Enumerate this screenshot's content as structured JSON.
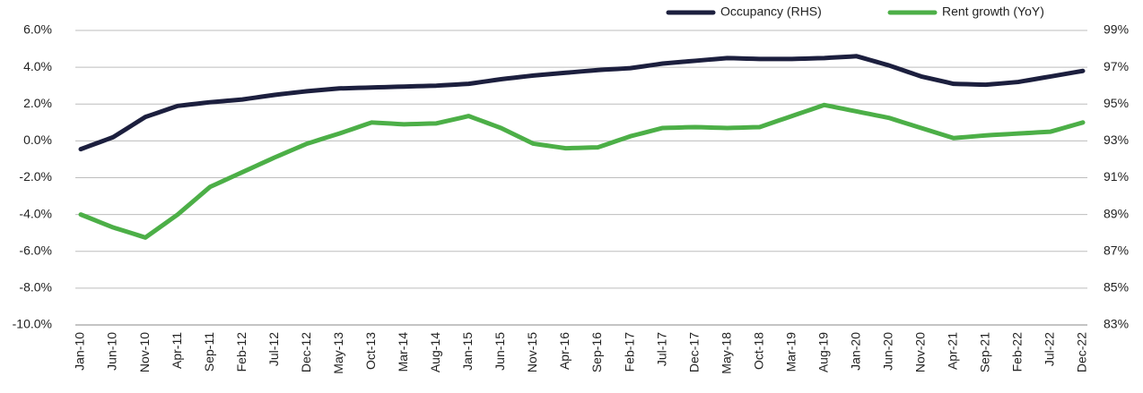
{
  "chart_data": {
    "type": "line",
    "categories": [
      "Jan-10",
      null,
      null,
      null,
      null,
      "Jun-10",
      null,
      null,
      null,
      null,
      "Nov-10",
      null,
      null,
      null,
      null,
      "Apr-11",
      null,
      null,
      null,
      null,
      "Sep-11",
      null,
      null,
      null,
      null,
      "Feb-12",
      null,
      null,
      null,
      null,
      "Jul-12",
      null,
      null,
      null,
      null,
      "Dec-12",
      null,
      null,
      null,
      null,
      "May-13",
      null,
      null,
      null,
      null,
      "Oct-13",
      null,
      null,
      null,
      null,
      "Mar-14",
      null,
      null,
      null,
      null,
      "Aug-14",
      null,
      null,
      null,
      null,
      "Jan-15",
      null,
      null,
      null,
      null,
      "Jun-15",
      null,
      null,
      null,
      null,
      "Nov-15",
      null,
      null,
      null,
      null,
      "Apr-16",
      null,
      null,
      null,
      null,
      "Sep-16",
      null,
      null,
      null,
      null,
      "Feb-17",
      null,
      null,
      null,
      null,
      "Jul-17",
      null,
      null,
      null,
      null,
      "Dec-17",
      null,
      null,
      null,
      null,
      "May-18",
      null,
      null,
      null,
      null,
      "Oct-18",
      null,
      null,
      null,
      null,
      "Mar-19",
      null,
      null,
      null,
      null,
      "Aug-19",
      null,
      null,
      null,
      null,
      "Jan-20",
      null,
      null,
      null,
      null,
      "Jun-20",
      null,
      null,
      null,
      null,
      "Nov-20",
      null,
      null,
      null,
      null,
      "Apr-21",
      null,
      null,
      null,
      null,
      "Sep-21",
      null,
      null,
      null,
      null,
      "Feb-22",
      null,
      null,
      null,
      null,
      "Jul-22",
      null,
      null,
      null,
      null,
      "Dec-22"
    ],
    "series": [
      {
        "name": "Occupancy (RHS)",
        "color": "#1c1f3e",
        "axis": "y2",
        "values": [
          92.55,
          92.68,
          92.81,
          92.94,
          93.07,
          93.2,
          93.42,
          93.64,
          93.86,
          94.08,
          94.3,
          94.42,
          94.54,
          94.66,
          94.78,
          94.9,
          94.94,
          94.98,
          95.02,
          95.06,
          95.1,
          95.13,
          95.16,
          95.19,
          95.22,
          95.25,
          95.3,
          95.35,
          95.4,
          95.45,
          95.5,
          95.54,
          95.58,
          95.62,
          95.66,
          95.7,
          95.73,
          95.76,
          95.79,
          95.82,
          95.85,
          95.86,
          95.87,
          95.88,
          95.89,
          95.9,
          95.91,
          95.92,
          95.93,
          95.94,
          95.95,
          95.96,
          95.97,
          95.98,
          95.99,
          96.0,
          96.02,
          96.04,
          96.06,
          96.08,
          96.1,
          96.15,
          96.2,
          96.25,
          96.3,
          96.35,
          96.39,
          96.43,
          96.47,
          96.51,
          96.55,
          96.58,
          96.61,
          96.64,
          96.67,
          96.7,
          96.73,
          96.76,
          96.79,
          96.82,
          96.85,
          96.87,
          96.89,
          96.91,
          96.93,
          96.95,
          97.0,
          97.05,
          97.1,
          97.15,
          97.2,
          97.23,
          97.26,
          97.29,
          97.32,
          97.35,
          97.38,
          97.41,
          97.44,
          97.47,
          97.5,
          97.49,
          97.48,
          97.47,
          97.46,
          97.45,
          97.45,
          97.45,
          97.45,
          97.45,
          97.45,
          97.46,
          97.47,
          97.48,
          97.49,
          97.5,
          97.52,
          97.54,
          97.56,
          97.58,
          97.6,
          97.5,
          97.4,
          97.3,
          97.2,
          97.1,
          96.98,
          96.86,
          96.74,
          96.62,
          96.5,
          96.42,
          96.34,
          96.26,
          96.18,
          96.1,
          96.09,
          96.08,
          96.07,
          96.06,
          96.05,
          96.08,
          96.11,
          96.14,
          96.17,
          96.2,
          96.26,
          96.32,
          96.38,
          96.44,
          96.5,
          96.56,
          96.62,
          96.68,
          96.74,
          96.8
        ]
      },
      {
        "name": "Rent growth (YoY)",
        "color": "#4caf47",
        "values": [
          -4.0,
          -4.14,
          -4.28,
          -4.42,
          -4.56,
          -4.7,
          -4.81,
          -4.92,
          -5.03,
          -5.14,
          -5.25,
          -5.0,
          -4.75,
          -4.5,
          -4.25,
          -4.0,
          -3.7,
          -3.4,
          -3.1,
          -2.8,
          -2.5,
          -2.34,
          -2.18,
          -2.02,
          -1.86,
          -1.7,
          -1.54,
          -1.38,
          -1.22,
          -1.06,
          -0.9,
          -0.75,
          -0.6,
          -0.45,
          -0.3,
          -0.15,
          -0.04,
          0.07,
          0.18,
          0.29,
          0.4,
          0.52,
          0.64,
          0.76,
          0.88,
          1.0,
          0.98,
          0.96,
          0.94,
          0.92,
          0.9,
          0.91,
          0.92,
          0.93,
          0.94,
          0.95,
          1.03,
          1.11,
          1.19,
          1.27,
          1.35,
          1.22,
          1.09,
          0.96,
          0.83,
          0.7,
          0.53,
          0.36,
          0.19,
          0.02,
          -0.15,
          -0.2,
          -0.25,
          -0.3,
          -0.35,
          -0.4,
          -0.39,
          -0.38,
          -0.37,
          -0.36,
          -0.35,
          -0.23,
          -0.11,
          0.01,
          0.13,
          0.25,
          0.34,
          0.43,
          0.52,
          0.61,
          0.7,
          0.71,
          0.72,
          0.73,
          0.74,
          0.75,
          0.74,
          0.73,
          0.72,
          0.71,
          0.7,
          0.71,
          0.72,
          0.73,
          0.74,
          0.75,
          0.87,
          0.99,
          1.11,
          1.23,
          1.35,
          1.47,
          1.59,
          1.71,
          1.83,
          1.95,
          1.88,
          1.81,
          1.74,
          1.67,
          1.6,
          1.53,
          1.46,
          1.39,
          1.32,
          1.25,
          1.14,
          1.03,
          0.92,
          0.81,
          0.7,
          0.59,
          0.48,
          0.37,
          0.26,
          0.15,
          0.18,
          0.21,
          0.24,
          0.27,
          0.3,
          0.32,
          0.34,
          0.36,
          0.38,
          0.4,
          0.42,
          0.44,
          0.46,
          0.48,
          0.5,
          0.6,
          0.7,
          0.8,
          0.9,
          1.0
        ]
      }
    ],
    "ylim": [
      -10,
      6
    ],
    "yticks": [
      {
        "value": -10,
        "label": "-10.0%"
      },
      {
        "value": -8,
        "label": "-8.0%"
      },
      {
        "value": -6,
        "label": "-6.0%"
      },
      {
        "value": -4,
        "label": "-4.0%"
      },
      {
        "value": -2,
        "label": "-2.0%"
      },
      {
        "value": 0,
        "label": "0.0%"
      },
      {
        "value": 2,
        "label": "2.0%"
      },
      {
        "value": 4,
        "label": "4.0%"
      },
      {
        "value": 6,
        "label": "6.0%"
      }
    ],
    "y2lim": [
      83,
      99
    ],
    "y2ticks": [
      {
        "value": 83,
        "label": "83%"
      },
      {
        "value": 85,
        "label": "85%"
      },
      {
        "value": 87,
        "label": "87%"
      },
      {
        "value": 89,
        "label": "89%"
      },
      {
        "value": 91,
        "label": "91%"
      },
      {
        "value": 93,
        "label": "93%"
      },
      {
        "value": 95,
        "label": "95%"
      },
      {
        "value": 97,
        "label": "97%"
      },
      {
        "value": 99,
        "label": "99%"
      }
    ],
    "grid": true,
    "legend": "top-right"
  }
}
